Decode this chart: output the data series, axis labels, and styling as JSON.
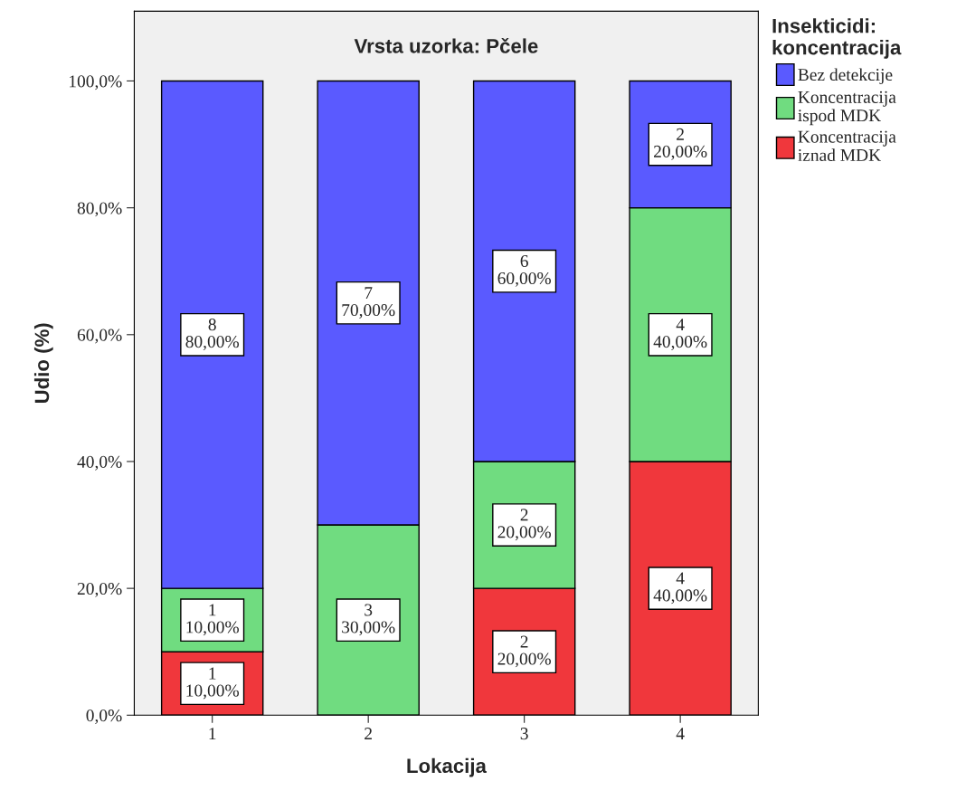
{
  "chart_data": {
    "type": "bar",
    "title": "Vrsta uzorka: Pčele",
    "xlabel": "Lokacija",
    "ylabel": "Udio (%)",
    "legend_title": "Insekticidi:\nkoncentracija",
    "categories": [
      "1",
      "2",
      "3",
      "4"
    ],
    "stacked": true,
    "series": [
      {
        "name": "Koncentracija\niznad MDK",
        "color": "#f0373c",
        "values": [
          10,
          0,
          20,
          40
        ],
        "value_labels": [
          "1\n10,00%",
          null,
          "2\n20,00%",
          "4\n40,00%"
        ]
      },
      {
        "name": "Koncentracija\nispod MDK",
        "color": "#70dc80",
        "values": [
          10,
          30,
          20,
          40
        ],
        "value_labels": [
          "1\n10,00%",
          "3\n30,00%",
          "2\n20,00%",
          "4\n40,00%"
        ]
      },
      {
        "name": "Bez detekcije",
        "color": "#5a5aff",
        "values": [
          80,
          70,
          60,
          20
        ],
        "value_labels": [
          "8\n80,00%",
          "7\n70,00%",
          "6\n60,00%",
          "2\n20,00%"
        ]
      }
    ],
    "ylim": [
      0,
      111
    ],
    "yticks": [
      {
        "value": 0,
        "label": "0,0%"
      },
      {
        "value": 20,
        "label": "20,0%"
      },
      {
        "value": 40,
        "label": "40,0%"
      },
      {
        "value": 60,
        "label": "60,0%"
      },
      {
        "value": 80,
        "label": "80,0%"
      },
      {
        "value": 100,
        "label": "100,0%"
      }
    ],
    "grid": false,
    "legend": "right"
  }
}
